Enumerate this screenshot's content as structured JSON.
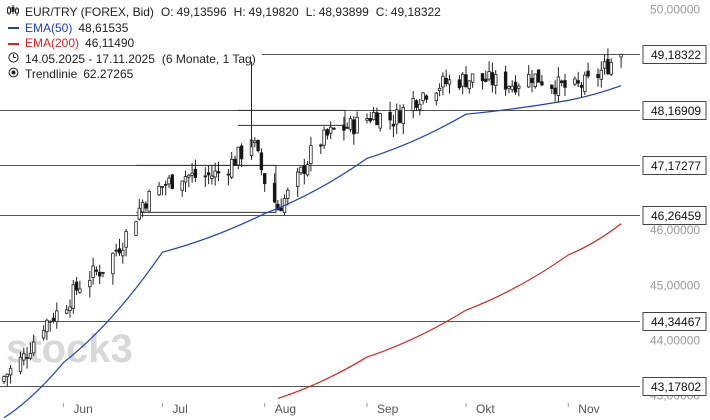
{
  "legend": {
    "instrument": "EUR/TRY (FOREX, Bid)",
    "ohlc": [
      {
        "label": "O:",
        "value": "49,13596"
      },
      {
        "label": "H:",
        "value": "49,19820"
      },
      {
        "label": "L:",
        "value": "48,93899"
      },
      {
        "label": "C:",
        "value": "49,18322"
      }
    ],
    "ema50": {
      "label": "EMA(50)",
      "value": "48,61535",
      "color": "#1f3fbf"
    },
    "ema200": {
      "label": "EMA(200)",
      "value": "46,11490",
      "color": "#e02020"
    },
    "range": {
      "label": "14.05.2025 - 17.11.2025",
      "detail": "(6 Monate, 1 Tag)"
    },
    "trendline": {
      "label": "Trendlinie",
      "value": "62.27265"
    }
  },
  "watermark": "stock3",
  "chart_data": {
    "type": "candlestick",
    "period": "14.05.2025 - 17.11.2025",
    "x_tick_labels": [
      "Jun",
      "Jul",
      "Aug",
      "Sep",
      "Okt",
      "Nov"
    ],
    "y_tick_labels": [
      "50,00000",
      "46,00000",
      "45,00000",
      "44,00000",
      "43,00000"
    ],
    "ylim": [
      43.0,
      50.3
    ],
    "price_levels": [
      {
        "label": "49,18322",
        "value": 49.18322,
        "current": true
      },
      {
        "label": "48,16909",
        "value": 48.16909
      },
      {
        "label": "47,17277",
        "value": 47.17277
      },
      {
        "label": "46,26459",
        "value": 46.26459
      },
      {
        "label": "44,34467",
        "value": 44.34467
      },
      {
        "label": "43,17802",
        "value": 43.17802
      }
    ],
    "support_zones": [
      {
        "from": "Jul",
        "to": "Aug",
        "value": 47.17277
      },
      {
        "from": "Aug",
        "to": "Sep",
        "value": 48.16909
      }
    ],
    "series": [
      {
        "name": "EUR/TRY",
        "kind": "candles",
        "anchors": [
          [
            "14.05.2025",
            43.35
          ],
          [
            "20.05.2025",
            43.7
          ],
          [
            "26.05.2025",
            44.3
          ],
          [
            "01.06.2025",
            44.6
          ],
          [
            "07.06.2025",
            45.1
          ],
          [
            "13.06.2025",
            45.3
          ],
          [
            "19.06.2025",
            45.8
          ],
          [
            "25.06.2025",
            46.5
          ],
          [
            "01.07.2025",
            46.8
          ],
          [
            "07.07.2025",
            47.0
          ],
          [
            "13.07.2025",
            46.95
          ],
          [
            "19.07.2025",
            47.05
          ],
          [
            "25.07.2025",
            47.4
          ],
          [
            "28.07.2025",
            47.7
          ],
          [
            "01.08.2025",
            46.9
          ],
          [
            "05.08.2025",
            46.4
          ],
          [
            "10.08.2025",
            46.8
          ],
          [
            "16.08.2025",
            47.5
          ],
          [
            "22.08.2025",
            47.8
          ],
          [
            "28.08.2025",
            47.9
          ],
          [
            "03.09.2025",
            48.1
          ],
          [
            "09.09.2025",
            48.0
          ],
          [
            "15.09.2025",
            48.35
          ],
          [
            "21.09.2025",
            48.6
          ],
          [
            "27.09.2025",
            48.7
          ],
          [
            "03.10.2025",
            48.75
          ],
          [
            "09.10.2025",
            48.7
          ],
          [
            "15.10.2025",
            48.65
          ],
          [
            "21.10.2025",
            48.8
          ],
          [
            "27.10.2025",
            48.65
          ],
          [
            "02.11.2025",
            48.55
          ],
          [
            "08.11.2025",
            48.7
          ],
          [
            "14.11.2025",
            49.05
          ],
          [
            "17.11.2025",
            49.18322
          ]
        ]
      },
      {
        "name": "EMA(50)",
        "kind": "line",
        "color": "#1f3fbf",
        "points": [
          [
            "14.05.2025",
            42.6
          ],
          [
            "01.06.2025",
            43.6
          ],
          [
            "01.07.2025",
            45.6
          ],
          [
            "01.08.2025",
            46.3
          ],
          [
            "01.09.2025",
            47.3
          ],
          [
            "01.10.2025",
            48.1
          ],
          [
            "01.11.2025",
            48.35
          ],
          [
            "17.11.2025",
            48.61535
          ]
        ]
      },
      {
        "name": "EMA(200)",
        "kind": "line",
        "color": "#e02020",
        "points": [
          [
            "05.08.2025",
            42.95
          ],
          [
            "01.09.2025",
            43.7
          ],
          [
            "01.10.2025",
            44.55
          ],
          [
            "01.11.2025",
            45.55
          ],
          [
            "17.11.2025",
            46.1149
          ]
        ]
      }
    ]
  }
}
